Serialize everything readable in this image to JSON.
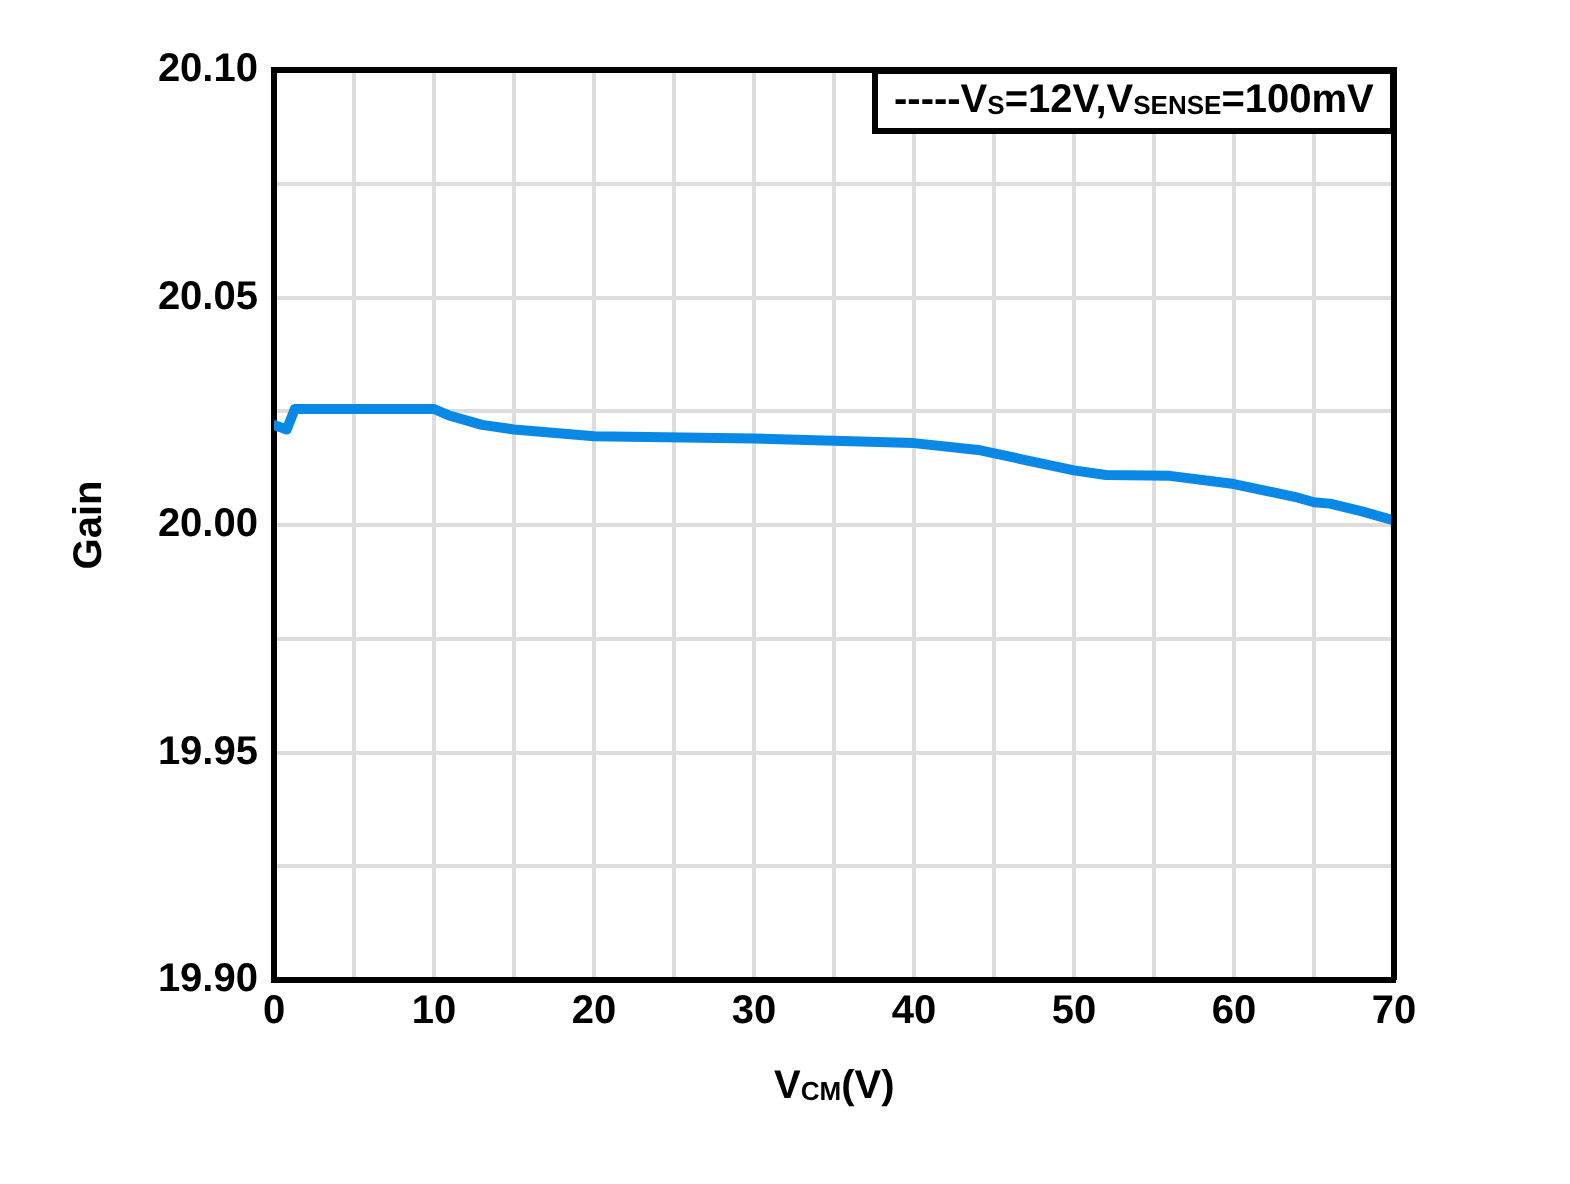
{
  "chart_data": {
    "type": "line",
    "xlabel": "V$_{CM}$(V)",
    "ylabel": "Gain",
    "x": [
      0,
      0.8,
      1.3,
      10,
      11,
      13,
      15,
      20,
      30,
      40,
      44,
      48,
      50,
      52,
      56,
      60,
      64,
      65,
      66,
      68,
      70
    ],
    "series": [
      {
        "name": "-----V$_{S}$=12V,V$_{SENSE}$=100mV",
        "color": "#0a88e6",
        "values": [
          20.022,
          20.021,
          20.0255,
          20.0255,
          20.024,
          20.022,
          20.021,
          20.0195,
          20.019,
          20.018,
          20.0165,
          20.0135,
          20.012,
          20.011,
          20.0108,
          20.009,
          20.006,
          20.005,
          20.0047,
          20.003,
          20.001
        ]
      }
    ],
    "xlim": [
      0,
      70
    ],
    "xticks": [
      0,
      {
        "value": 5,
        "label": null
      },
      10,
      {
        "value": 15,
        "label": null
      },
      20,
      {
        "value": 25,
        "label": null
      },
      30,
      {
        "value": 35,
        "label": null
      },
      40,
      {
        "value": 45,
        "label": null
      },
      50,
      {
        "value": 55,
        "label": null
      },
      60,
      {
        "value": 65,
        "label": null
      },
      70
    ],
    "ylim": [
      19.9,
      20.1
    ],
    "yticks": [
      {
        "value": 19.9,
        "label": "19.90"
      },
      {
        "value": 19.925,
        "label": null
      },
      {
        "value": 19.95,
        "label": "19.95"
      },
      {
        "value": 19.975,
        "label": null
      },
      {
        "value": 20.0,
        "label": "20.00"
      },
      {
        "value": 20.025,
        "label": null
      },
      {
        "value": 20.05,
        "label": "20.05"
      },
      {
        "value": 20.075,
        "label": null
      },
      {
        "value": 20.1,
        "label": "20.10"
      }
    ],
    "grid": true,
    "legend": "top right",
    "marker": "none",
    "line_style": "solid"
  }
}
